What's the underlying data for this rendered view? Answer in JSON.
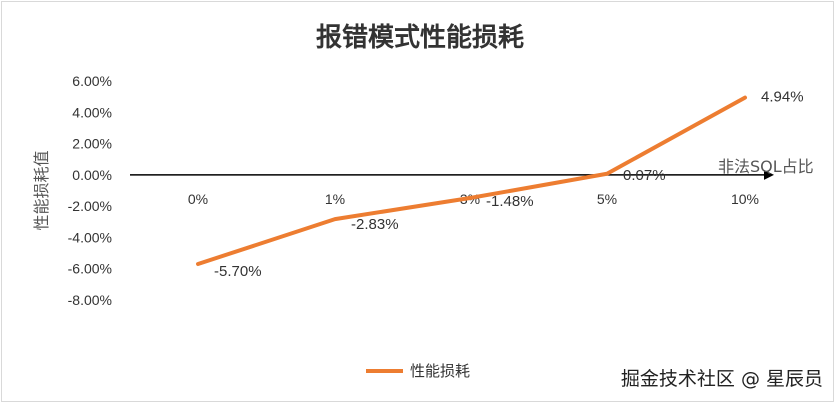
{
  "chart_data": {
    "type": "line",
    "title": "报错模式性能损耗",
    "xlabel": "非法SQL占比",
    "ylabel": "性能损耗值",
    "categories": [
      "0%",
      "1%",
      "3%",
      "5%",
      "10%"
    ],
    "series": [
      {
        "name": "性能损耗",
        "values": [
          -5.7,
          -2.83,
          -1.48,
          0.07,
          4.94
        ],
        "labels": [
          "-5.70%",
          "-2.83%",
          "-1.48%",
          "0.07%",
          "4.94%"
        ],
        "color": "#ED7D31"
      }
    ],
    "ylim": [
      -8,
      6
    ],
    "yticks": [
      "6.00%",
      "4.00%",
      "2.00%",
      "0.00%",
      "-2.00%",
      "-4.00%",
      "-6.00%",
      "-8.00%"
    ],
    "legend": "bottom",
    "grid": false
  },
  "watermark": "掘金技术社区 @ 星辰员"
}
